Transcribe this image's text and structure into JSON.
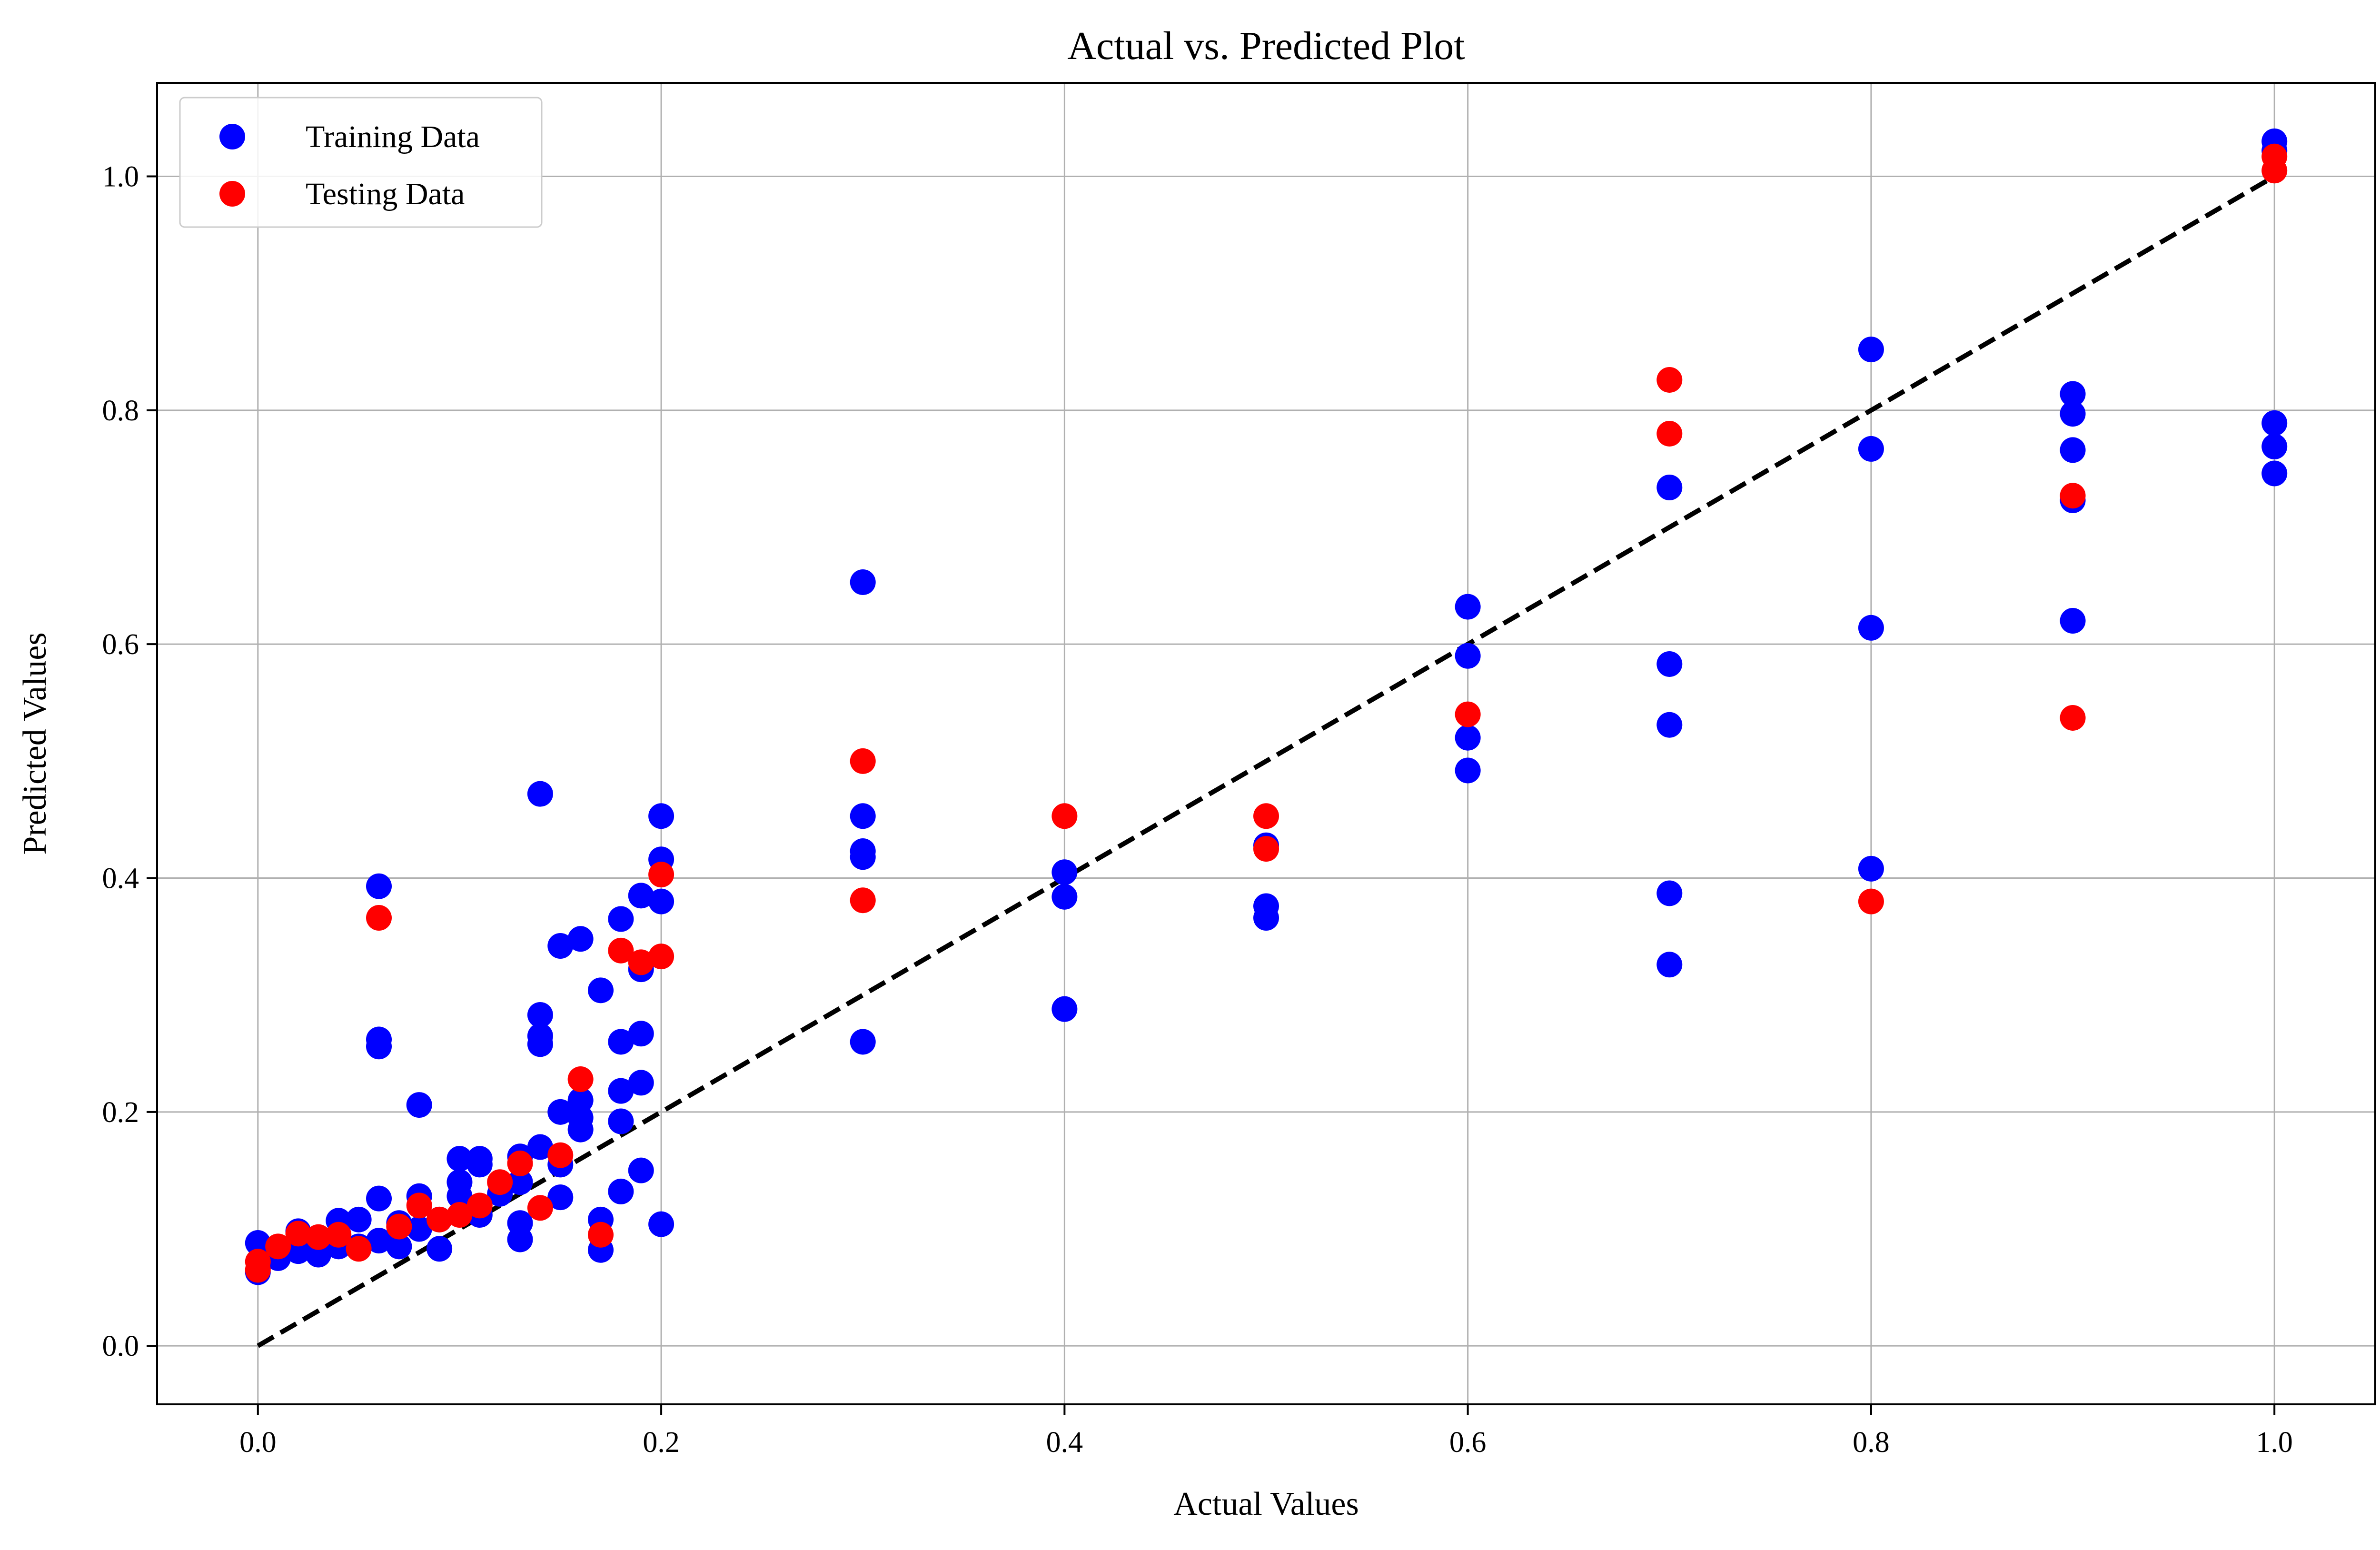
{
  "chart_data": {
    "type": "scatter",
    "title": "Actual vs. Predicted Plot",
    "xlabel": "Actual Values",
    "ylabel": "Predicted Values",
    "xlim": [
      -0.05,
      1.05
    ],
    "ylim": [
      -0.05,
      1.08
    ],
    "xticks": [
      0.0,
      0.2,
      0.4,
      0.6,
      0.8,
      1.0
    ],
    "yticks": [
      0.0,
      0.2,
      0.4,
      0.6,
      0.8,
      1.0
    ],
    "xtick_labels": [
      "0.0",
      "0.2",
      "0.4",
      "0.6",
      "0.8",
      "1.0"
    ],
    "ytick_labels": [
      "0.0",
      "0.2",
      "0.4",
      "0.6",
      "0.8",
      "1.0"
    ],
    "grid": true,
    "legend_position": "top-left",
    "reference_line": {
      "x": [
        0.0,
        1.0
      ],
      "y": [
        0.0,
        1.0
      ],
      "style": "dashed",
      "color": "#000000"
    },
    "series": [
      {
        "name": "Training Data",
        "color": "#0000ff",
        "points": [
          [
            0.0,
            0.088
          ],
          [
            0.0,
            0.063
          ],
          [
            0.01,
            0.075
          ],
          [
            0.02,
            0.098
          ],
          [
            0.02,
            0.081
          ],
          [
            0.03,
            0.078
          ],
          [
            0.03,
            0.088
          ],
          [
            0.04,
            0.107
          ],
          [
            0.04,
            0.085
          ],
          [
            0.05,
            0.108
          ],
          [
            0.05,
            0.085
          ],
          [
            0.06,
            0.393
          ],
          [
            0.06,
            0.262
          ],
          [
            0.06,
            0.256
          ],
          [
            0.06,
            0.126
          ],
          [
            0.06,
            0.09
          ],
          [
            0.07,
            0.105
          ],
          [
            0.07,
            0.085
          ],
          [
            0.08,
            0.206
          ],
          [
            0.08,
            0.128
          ],
          [
            0.08,
            0.1
          ],
          [
            0.09,
            0.108
          ],
          [
            0.09,
            0.083
          ],
          [
            0.1,
            0.16
          ],
          [
            0.1,
            0.14
          ],
          [
            0.1,
            0.128
          ],
          [
            0.11,
            0.16
          ],
          [
            0.11,
            0.155
          ],
          [
            0.11,
            0.112
          ],
          [
            0.12,
            0.13
          ],
          [
            0.13,
            0.162
          ],
          [
            0.13,
            0.14
          ],
          [
            0.13,
            0.105
          ],
          [
            0.13,
            0.091
          ],
          [
            0.14,
            0.472
          ],
          [
            0.14,
            0.283
          ],
          [
            0.14,
            0.265
          ],
          [
            0.14,
            0.258
          ],
          [
            0.14,
            0.17
          ],
          [
            0.15,
            0.342
          ],
          [
            0.15,
            0.2
          ],
          [
            0.15,
            0.155
          ],
          [
            0.15,
            0.127
          ],
          [
            0.16,
            0.348
          ],
          [
            0.16,
            0.21
          ],
          [
            0.16,
            0.195
          ],
          [
            0.16,
            0.185
          ],
          [
            0.17,
            0.304
          ],
          [
            0.17,
            0.108
          ],
          [
            0.17,
            0.082
          ],
          [
            0.18,
            0.365
          ],
          [
            0.18,
            0.26
          ],
          [
            0.18,
            0.218
          ],
          [
            0.18,
            0.192
          ],
          [
            0.18,
            0.132
          ],
          [
            0.19,
            0.385
          ],
          [
            0.19,
            0.322
          ],
          [
            0.19,
            0.267
          ],
          [
            0.19,
            0.225
          ],
          [
            0.19,
            0.15
          ],
          [
            0.2,
            0.453
          ],
          [
            0.2,
            0.416
          ],
          [
            0.2,
            0.38
          ],
          [
            0.2,
            0.104
          ],
          [
            0.3,
            0.653
          ],
          [
            0.3,
            0.453
          ],
          [
            0.3,
            0.423
          ],
          [
            0.3,
            0.418
          ],
          [
            0.3,
            0.26
          ],
          [
            0.4,
            0.405
          ],
          [
            0.4,
            0.384
          ],
          [
            0.4,
            0.288
          ],
          [
            0.5,
            0.428
          ],
          [
            0.5,
            0.376
          ],
          [
            0.5,
            0.366
          ],
          [
            0.6,
            0.632
          ],
          [
            0.6,
            0.59
          ],
          [
            0.6,
            0.52
          ],
          [
            0.6,
            0.492
          ],
          [
            0.7,
            0.734
          ],
          [
            0.7,
            0.583
          ],
          [
            0.7,
            0.531
          ],
          [
            0.7,
            0.387
          ],
          [
            0.7,
            0.326
          ],
          [
            0.8,
            0.852
          ],
          [
            0.8,
            0.767
          ],
          [
            0.8,
            0.614
          ],
          [
            0.8,
            0.408
          ],
          [
            0.9,
            0.814
          ],
          [
            0.9,
            0.797
          ],
          [
            0.9,
            0.766
          ],
          [
            0.9,
            0.723
          ],
          [
            0.9,
            0.62
          ],
          [
            1.0,
            1.03
          ],
          [
            1.0,
            1.022
          ],
          [
            1.0,
            0.789
          ],
          [
            1.0,
            0.769
          ],
          [
            1.0,
            0.746
          ]
        ]
      },
      {
        "name": "Testing Data",
        "color": "#ff0000",
        "points": [
          [
            0.0,
            0.072
          ],
          [
            0.0,
            0.065
          ],
          [
            0.01,
            0.085
          ],
          [
            0.02,
            0.096
          ],
          [
            0.03,
            0.093
          ],
          [
            0.04,
            0.095
          ],
          [
            0.05,
            0.083
          ],
          [
            0.06,
            0.366
          ],
          [
            0.07,
            0.102
          ],
          [
            0.08,
            0.12
          ],
          [
            0.09,
            0.108
          ],
          [
            0.1,
            0.112
          ],
          [
            0.11,
            0.12
          ],
          [
            0.12,
            0.14
          ],
          [
            0.13,
            0.156
          ],
          [
            0.14,
            0.118
          ],
          [
            0.15,
            0.163
          ],
          [
            0.16,
            0.228
          ],
          [
            0.17,
            0.095
          ],
          [
            0.18,
            0.338
          ],
          [
            0.19,
            0.328
          ],
          [
            0.2,
            0.403
          ],
          [
            0.2,
            0.333
          ],
          [
            0.3,
            0.5
          ],
          [
            0.3,
            0.381
          ],
          [
            0.4,
            0.453
          ],
          [
            0.5,
            0.453
          ],
          [
            0.5,
            0.425
          ],
          [
            0.6,
            0.54
          ],
          [
            0.7,
            0.826
          ],
          [
            0.7,
            0.78
          ],
          [
            0.8,
            0.38
          ],
          [
            0.9,
            0.727
          ],
          [
            0.9,
            0.537
          ],
          [
            1.0,
            1.017
          ],
          [
            1.0,
            1.005
          ]
        ]
      }
    ]
  }
}
